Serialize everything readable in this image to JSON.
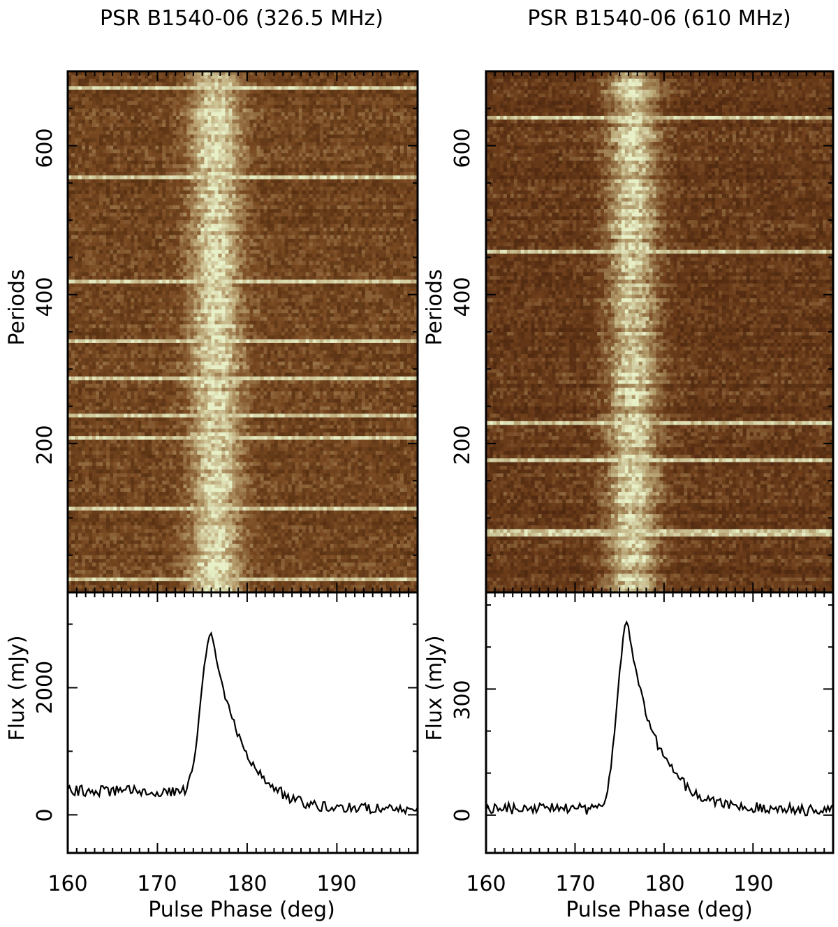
{
  "chart_data": [
    {
      "type": "heatmap",
      "title": "PSR B1540-06 (326.5 MHz)",
      "ylabel": "Periods",
      "xlim": [
        160,
        199
      ],
      "ylim": [
        0,
        700
      ],
      "yticks": [
        200,
        400,
        600
      ],
      "pulse_center_deg": 176.5,
      "pulse_width_deg": 6,
      "colormap": [
        "#402008",
        "#7a4a22",
        "#b8a070",
        "#e8f0c8"
      ],
      "bright_rows": [
        682,
        562,
        422,
        338,
        288,
        238,
        212,
        114,
        20
      ],
      "profile": {
        "type": "line",
        "ylabel": "Flux (mJy)",
        "xlabel": "Pulse Phase (deg)",
        "xlim": [
          160,
          199
        ],
        "ylim": [
          -600,
          3500
        ],
        "xticks": [
          160,
          170,
          180,
          190
        ],
        "yticks": [
          0,
          2000
        ],
        "peak_flux": 2900,
        "peak_phase": 176.0,
        "baseline_start": 380,
        "baseline_end": 80
      }
    },
    {
      "type": "heatmap",
      "title": "PSR B1540-06 (610 MHz)",
      "ylabel": "Periods",
      "xlim": [
        160,
        199
      ],
      "ylim": [
        0,
        700
      ],
      "yticks": [
        200,
        400,
        600
      ],
      "pulse_center_deg": 176.5,
      "pulse_width_deg": 6,
      "colormap": [
        "#3a1a08",
        "#70401c",
        "#b09868",
        "#e8f0c8"
      ],
      "bright_rows": [
        640,
        458,
        232,
        182,
        80,
        85
      ],
      "profile": {
        "type": "line",
        "ylabel": "Flux (mJy)",
        "xlabel": "Pulse Phase (deg)",
        "xlim": [
          160,
          199
        ],
        "ylim": [
          -90,
          530
        ],
        "xticks": [
          160,
          170,
          180,
          190
        ],
        "yticks": [
          0,
          300
        ],
        "peak_flux": 460,
        "peak_phase": 175.9,
        "baseline_start": 15,
        "baseline_end": 12
      }
    }
  ]
}
